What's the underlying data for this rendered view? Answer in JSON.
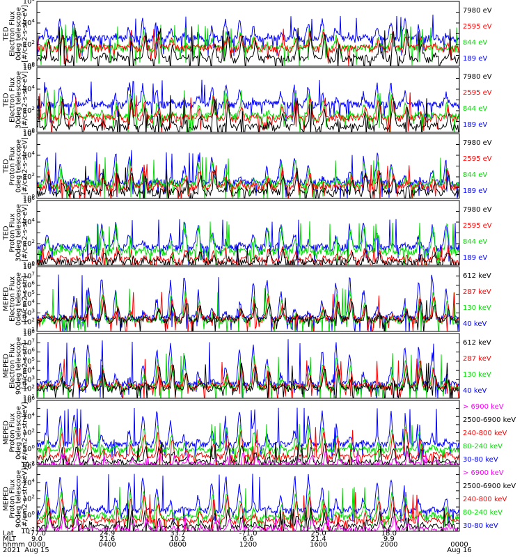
{
  "colors": {
    "blue": "#0000ff",
    "red": "#ff0000",
    "green": "#00dd00",
    "black": "#000000",
    "magenta": "#ff00ff"
  },
  "chart_data": [
    {
      "type": "line",
      "ylabel": [
        "TED",
        "Electron Flux",
        "0deg telescope",
        "[#/cm2-s-str-eV]"
      ],
      "y_scale": "log",
      "ylim_exp": [
        0,
        6
      ],
      "ytick_exps": [
        0,
        2,
        4,
        6
      ],
      "legend": [
        {
          "label": "7980 eV",
          "color": "black"
        },
        {
          "label": "2595 eV",
          "color": "red"
        },
        {
          "label": "844 eV",
          "color": "green"
        },
        {
          "label": "189 eV",
          "color": "blue"
        }
      ],
      "levels": {
        "blue": [
          2.5,
          4.3
        ],
        "red": [
          1.6,
          3.0
        ],
        "green": [
          1.6,
          3.4
        ],
        "black": [
          0.6,
          3.2
        ]
      }
    },
    {
      "type": "line",
      "ylabel": [
        "TED",
        "Electron Flux",
        "30deg telescope",
        "[#/cm2-s-str-eV]"
      ],
      "y_scale": "log",
      "ylim_exp": [
        0,
        6
      ],
      "ytick_exps": [
        0,
        2,
        4,
        6
      ],
      "legend": [
        {
          "label": "7980 eV",
          "color": "black"
        },
        {
          "label": "2595 eV",
          "color": "red"
        },
        {
          "label": "844 eV",
          "color": "green"
        },
        {
          "label": "189 eV",
          "color": "blue"
        }
      ],
      "levels": {
        "blue": [
          2.5,
          4.4
        ],
        "red": [
          1.2,
          3.2
        ],
        "green": [
          1.4,
          3.5
        ],
        "black": [
          0.4,
          3.0
        ]
      }
    },
    {
      "type": "line",
      "ylabel": [
        "TED",
        "Proton Flux",
        "0deg telescope",
        "[#/cm2-s-str-eV]"
      ],
      "y_scale": "log",
      "ylim_exp": [
        0,
        6
      ],
      "ytick_exps": [
        0,
        2,
        4,
        6
      ],
      "legend": [
        {
          "label": "7980 eV",
          "color": "black"
        },
        {
          "label": "2595 eV",
          "color": "red"
        },
        {
          "label": "844 eV",
          "color": "green"
        },
        {
          "label": "189 eV",
          "color": "blue"
        }
      ],
      "levels": {
        "blue": [
          1.4,
          4.0
        ],
        "red": [
          1.0,
          2.8
        ],
        "green": [
          1.2,
          3.4
        ],
        "black": [
          0.5,
          2.6
        ]
      }
    },
    {
      "type": "line",
      "ylabel": [
        "TED",
        "Proton Flux",
        "30deg telescope",
        "[#/cm2-s-str-eV]"
      ],
      "y_scale": "log",
      "ylim_exp": [
        0,
        6
      ],
      "ytick_exps": [
        0,
        2,
        4,
        6
      ],
      "legend": [
        {
          "label": "7980 eV",
          "color": "black"
        },
        {
          "label": "2595 eV",
          "color": "red"
        },
        {
          "label": "844 eV",
          "color": "green"
        },
        {
          "label": "189 eV",
          "color": "blue"
        }
      ],
      "levels": {
        "blue": [
          1.6,
          3.8
        ],
        "red": [
          0.4,
          1.6
        ],
        "green": [
          1.2,
          3.6
        ],
        "black": [
          0.2,
          1.4
        ]
      }
    },
    {
      "type": "line",
      "ylabel": [
        "MEPED",
        "Electron Flux",
        "0deg telescope",
        "[#/cm2-s-str]"
      ],
      "y_scale": "log",
      "ylim_exp": [
        1,
        8
      ],
      "ytick_exps": [
        1,
        2,
        3,
        4,
        5,
        6,
        7,
        8
      ],
      "legend": [
        {
          "label": "612 keV",
          "color": "black"
        },
        {
          "label": "287 keV",
          "color": "red"
        },
        {
          "label": "130 keV",
          "color": "green"
        },
        {
          "label": "40 keV",
          "color": "blue"
        }
      ],
      "levels": {
        "blue": [
          2.4,
          6.8
        ],
        "red": [
          2.3,
          4.8
        ],
        "green": [
          2.1,
          5.2
        ],
        "black": [
          2.2,
          4.2
        ]
      }
    },
    {
      "type": "line",
      "ylabel": [
        "MEPED",
        "Electron Flux",
        "90deg telescope",
        "[#/cm2-s-str]"
      ],
      "y_scale": "log",
      "ylim_exp": [
        1,
        8
      ],
      "ytick_exps": [
        1,
        2,
        3,
        4,
        5,
        6,
        7,
        8
      ],
      "legend": [
        {
          "label": "612 keV",
          "color": "black"
        },
        {
          "label": "287 keV",
          "color": "red"
        },
        {
          "label": "130 keV",
          "color": "green"
        },
        {
          "label": "40 keV",
          "color": "blue"
        }
      ],
      "levels": {
        "blue": [
          2.5,
          6.9
        ],
        "red": [
          2.2,
          4.9
        ],
        "green": [
          2.1,
          5.4
        ],
        "black": [
          2.0,
          4.4
        ]
      }
    },
    {
      "type": "line",
      "ylabel": [
        "MEPED",
        "Proton Flux",
        "0deg telescope",
        "[#/cm2-s-str-keV]"
      ],
      "y_scale": "log",
      "ylim_exp": [
        -2,
        6
      ],
      "ytick_exps": [
        -2,
        0,
        2,
        4,
        6
      ],
      "legend": [
        {
          "label": "> 6900 keV",
          "color": "magenta"
        },
        {
          "label": "2500-6900 keV",
          "color": "black"
        },
        {
          "label": "240-800 keV",
          "color": "red"
        },
        {
          "label": "80-240 keV",
          "color": "green"
        },
        {
          "label": "30-80 keV",
          "color": "blue"
        }
      ],
      "levels": {
        "blue": [
          0.5,
          4.6
        ],
        "red": [
          -1.0,
          2.2
        ],
        "green": [
          -0.2,
          2.8
        ],
        "black": [
          -1.7,
          0.4
        ],
        "magenta": [
          -2.0,
          -0.6
        ]
      }
    },
    {
      "type": "line",
      "ylabel": [
        "MEPED",
        "Proton Flux",
        "90deg telescope",
        "[#/cm2-s-str-keV]"
      ],
      "y_scale": "log",
      "ylim_exp": [
        -2,
        6
      ],
      "ytick_exps": [
        -2,
        0,
        2,
        4,
        6
      ],
      "legend": [
        {
          "label": "> 6900 keV",
          "color": "magenta"
        },
        {
          "label": "2500-6900 keV",
          "color": "black"
        },
        {
          "label": "240-800 keV",
          "color": "red"
        },
        {
          "label": "80-240 keV",
          "color": "green"
        },
        {
          "label": "30-80 keV",
          "color": "blue"
        }
      ],
      "levels": {
        "blue": [
          0.5,
          4.7
        ],
        "red": [
          -0.8,
          2.4
        ],
        "green": [
          -0.3,
          3.0
        ],
        "black": [
          -1.5,
          0.6
        ],
        "magenta": [
          -1.9,
          -0.4
        ]
      }
    }
  ],
  "x_axis": {
    "row_labels": [
      "Lat",
      "MLT",
      "hhmm",
      "2021"
    ],
    "ticks": [
      {
        "lat": "-77.0",
        "mlt": "9.0",
        "hhmm": "0000",
        "date": "Aug 15"
      },
      {
        "lat": "24.9",
        "mlt": "21.6",
        "hhmm": "0400",
        "date": ""
      },
      {
        "lat": "33.7",
        "mlt": "10.2",
        "hhmm": "0800",
        "date": ""
      },
      {
        "lat": "-71.0",
        "mlt": "6.6",
        "hhmm": "1200",
        "date": ""
      },
      {
        "lat": "25.0",
        "mlt": "21.4",
        "hhmm": "1600",
        "date": ""
      },
      {
        "lat": "18.0",
        "mlt": "9.9",
        "hhmm": "2000",
        "date": ""
      },
      {
        "lat": "",
        "mlt": "",
        "hhmm": "0000",
        "date": "Aug 16"
      }
    ]
  }
}
